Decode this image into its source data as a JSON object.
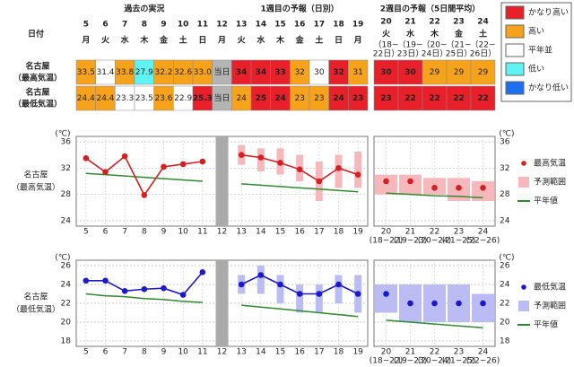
{
  "header": {
    "date_label": "日付",
    "past": "過去の実況",
    "week1": "1週目の予報（日別）",
    "week2": "2週目の予報（5日間平均）"
  },
  "legend": [
    {
      "label": "かなり高い",
      "color": "#e8202a"
    },
    {
      "label": "高い",
      "color": "#f7a21b"
    },
    {
      "label": "平年並",
      "color": "#ffffff"
    },
    {
      "label": "低い",
      "color": "#5ff3f3"
    },
    {
      "label": "かなり低い",
      "color": "#1e6ef0"
    }
  ],
  "days": [
    {
      "day": "5",
      "weekday": "月"
    },
    {
      "day": "6",
      "weekday": "火"
    },
    {
      "day": "7",
      "weekday": "水"
    },
    {
      "day": "8",
      "weekday": "木"
    },
    {
      "day": "9",
      "weekday": "金"
    },
    {
      "day": "10",
      "weekday": "土"
    },
    {
      "day": "11",
      "weekday": "日"
    },
    {
      "day": "12",
      "weekday": "月"
    },
    {
      "day": "13",
      "weekday": "火"
    },
    {
      "day": "14",
      "weekday": "水"
    },
    {
      "day": "15",
      "weekday": "木"
    },
    {
      "day": "16",
      "weekday": "金"
    },
    {
      "day": "17",
      "weekday": "土"
    },
    {
      "day": "18",
      "weekday": "日"
    },
    {
      "day": "19",
      "weekday": "月"
    }
  ],
  "week2_days": [
    {
      "day": "20",
      "weekday": "火",
      "span": [
        "（18~",
        "22日）"
      ]
    },
    {
      "day": "21",
      "weekday": "水",
      "span": [
        "（19~",
        "23日）"
      ]
    },
    {
      "day": "22",
      "weekday": "木",
      "span": [
        "（20~",
        "24日）"
      ]
    },
    {
      "day": "23",
      "weekday": "金",
      "span": [
        "（21~",
        "25日）"
      ]
    },
    {
      "day": "24",
      "weekday": "土",
      "span": [
        "（22~",
        "26日）"
      ]
    }
  ],
  "table": {
    "rows": [
      {
        "city": "名古屋",
        "element": "（最高気温）",
        "cells": [
          {
            "text": "33.5",
            "color": "#f7a21b"
          },
          {
            "text": "31.4",
            "color": "#ffffff"
          },
          {
            "text": "33.8",
            "color": "#f7a21b"
          },
          {
            "text": "27.9",
            "color": "#5ff3f3"
          },
          {
            "text": "32.2",
            "color": "#f7a21b"
          },
          {
            "text": "32.6",
            "color": "#f7a21b"
          },
          {
            "text": "33.0",
            "color": "#f7a21b"
          },
          {
            "text": "当日",
            "color": "#b4b4b4"
          },
          {
            "text": "34",
            "color": "#e8202a"
          },
          {
            "text": "34",
            "color": "#e8202a"
          },
          {
            "text": "33",
            "color": "#e8202a"
          },
          {
            "text": "32",
            "color": "#f7a21b"
          },
          {
            "text": "30",
            "color": "#ffffff"
          },
          {
            "text": "32",
            "color": "#e8202a"
          },
          {
            "text": "31",
            "color": "#f7a21b"
          }
        ],
        "week2_cells": [
          {
            "text": "30",
            "color": "#e8202a"
          },
          {
            "text": "30",
            "color": "#e8202a"
          },
          {
            "text": "29",
            "color": "#f7a21b"
          },
          {
            "text": "29",
            "color": "#f7a21b"
          },
          {
            "text": "29",
            "color": "#f7a21b"
          }
        ]
      },
      {
        "city": "名古屋",
        "element": "（最低気温）",
        "cells": [
          {
            "text": "24.4",
            "color": "#f7a21b"
          },
          {
            "text": "24.4",
            "color": "#f7a21b"
          },
          {
            "text": "23.3",
            "color": "#ffffff"
          },
          {
            "text": "23.5",
            "color": "#ffffff"
          },
          {
            "text": "23.6",
            "color": "#f7a21b"
          },
          {
            "text": "22.9",
            "color": "#ffffff"
          },
          {
            "text": "25.3",
            "color": "#e8202a"
          },
          {
            "text": "当日",
            "color": "#b4b4b4"
          },
          {
            "text": "24",
            "color": "#f7a21b"
          },
          {
            "text": "25",
            "color": "#e8202a"
          },
          {
            "text": "24",
            "color": "#e8202a"
          },
          {
            "text": "23",
            "color": "#f7a21b"
          },
          {
            "text": "23",
            "color": "#f7a21b"
          },
          {
            "text": "24",
            "color": "#e8202a"
          },
          {
            "text": "23",
            "color": "#e8202a"
          }
        ],
        "week2_cells": [
          {
            "text": "23",
            "color": "#e8202a"
          },
          {
            "text": "22",
            "color": "#e8202a"
          },
          {
            "text": "22",
            "color": "#e8202a"
          },
          {
            "text": "22",
            "color": "#e8202a"
          },
          {
            "text": "22",
            "color": "#e8202a"
          }
        ]
      }
    ]
  },
  "chart_data": [
    {
      "type": "line",
      "unit": "(℃)",
      "ylim": [
        24,
        36
      ],
      "yticks": [
        24,
        28,
        32,
        36
      ],
      "grid": true,
      "categories": [
        "5",
        "6",
        "7",
        "8",
        "9",
        "10",
        "11",
        "12",
        "13",
        "14",
        "15",
        "16",
        "17",
        "18",
        "19"
      ],
      "week2_categories": [
        "20",
        "21",
        "22",
        "23",
        "24"
      ],
      "week2_spans": [
        "(18~22)",
        "(19~23)",
        "(20~24)",
        "(21~25)",
        "(22~26)"
      ],
      "series": [
        {
          "name": "最高気温",
          "style": "point",
          "color": "#d42020",
          "values": [
            33.5,
            31.4,
            33.8,
            27.9,
            32.2,
            32.6,
            33.0,
            null,
            34,
            33.6,
            32.8,
            31.8,
            30,
            32,
            31
          ],
          "week2_values": [
            30,
            30,
            29,
            29,
            29
          ]
        },
        {
          "name": "予測範囲",
          "style": "range",
          "color": "#f7b8bc",
          "low": [
            null,
            null,
            null,
            null,
            null,
            null,
            null,
            null,
            32.5,
            31.5,
            31,
            30,
            27,
            29,
            29
          ],
          "high": [
            null,
            null,
            null,
            null,
            null,
            null,
            null,
            null,
            35.5,
            35,
            35,
            34,
            33,
            34,
            34.5
          ],
          "week2_low": [
            28,
            28,
            28,
            27,
            27
          ],
          "week2_high": [
            31,
            31,
            30.5,
            30.5,
            30
          ]
        },
        {
          "name": "平年値",
          "style": "normal",
          "color": "#2e8b2e",
          "values": [
            31.2,
            31.0,
            30.8,
            30.6,
            30.4,
            30.2,
            30.0,
            null,
            29.6,
            29.4,
            29.2,
            29.0,
            28.8,
            28.6,
            28.4
          ],
          "week2_values": [
            28.2,
            28.0,
            27.8,
            27.7,
            27.5
          ]
        }
      ]
    },
    {
      "type": "line",
      "unit": "(℃)",
      "ylim": [
        18,
        26
      ],
      "yticks": [
        18,
        20,
        22,
        24,
        26
      ],
      "grid": true,
      "categories": [
        "5",
        "6",
        "7",
        "8",
        "9",
        "10",
        "11",
        "12",
        "13",
        "14",
        "15",
        "16",
        "17",
        "18",
        "19"
      ],
      "week2_categories": [
        "20",
        "21",
        "22",
        "23",
        "24"
      ],
      "week2_spans": [
        "(18~22)",
        "(19~23)",
        "(20~24)",
        "(21~25)",
        "(22~26)"
      ],
      "series": [
        {
          "name": "最低気温",
          "style": "point",
          "color": "#1a1acc",
          "values": [
            24.4,
            24.4,
            23.3,
            23.5,
            23.6,
            22.9,
            25.3,
            null,
            24,
            25,
            24,
            23,
            23,
            24,
            23
          ],
          "week2_values": [
            23,
            22,
            22,
            22,
            22
          ]
        },
        {
          "name": "予測範囲",
          "style": "range",
          "color": "#bcbcf5",
          "low": [
            null,
            null,
            null,
            null,
            null,
            null,
            null,
            null,
            23,
            23,
            22,
            21,
            21,
            22,
            21
          ],
          "high": [
            null,
            null,
            null,
            null,
            null,
            null,
            null,
            null,
            25,
            26,
            25,
            24,
            24,
            25,
            25
          ],
          "week2_low": [
            21,
            20,
            20,
            20,
            20
          ],
          "week2_high": [
            24,
            24,
            24,
            24,
            23
          ]
        },
        {
          "name": "平年値",
          "style": "normal",
          "color": "#2e8b2e",
          "values": [
            23.0,
            22.8,
            22.7,
            22.5,
            22.4,
            22.2,
            22.1,
            null,
            21.8,
            21.6,
            21.4,
            21.2,
            21.0,
            20.8,
            20.6
          ],
          "week2_values": [
            20.2,
            20.0,
            19.8,
            19.6,
            19.4
          ]
        }
      ]
    }
  ]
}
